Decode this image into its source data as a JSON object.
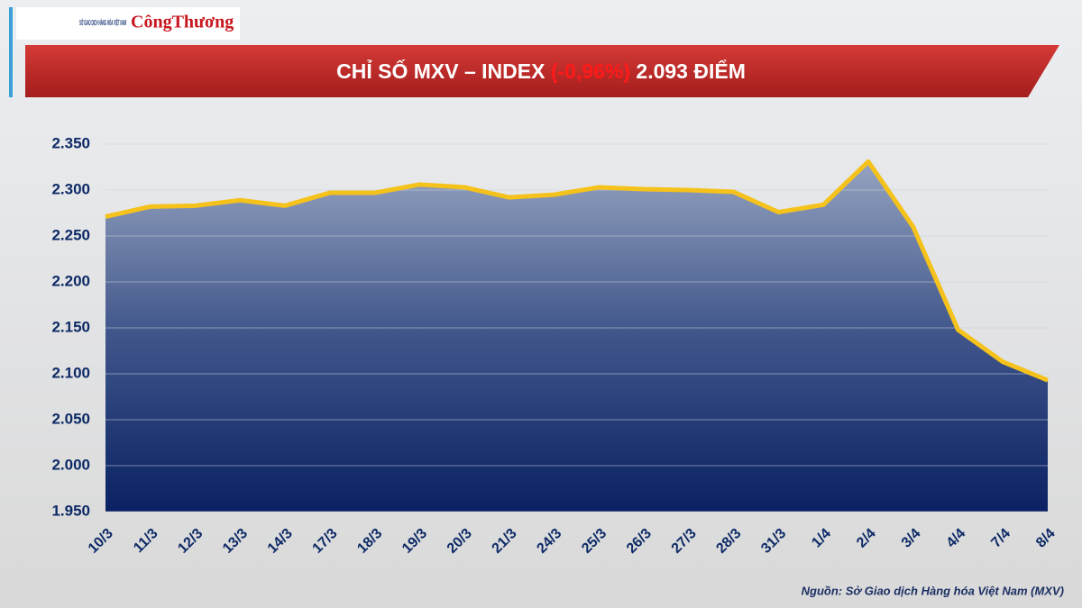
{
  "chart_data": {
    "type": "area",
    "logo_text": "SỞ GIAO DỊCH HÀNG HÓA VIỆT NAM",
    "brand": "CôngThương",
    "title": "CHỈ SỐ MXV – INDEX",
    "title_change": "(-0,96%)",
    "title_value": "2.093 ĐIỂM",
    "source": "Nguồn: Sở Giao dịch Hàng hóa Việt Nam (MXV)",
    "categories": [
      "10/3",
      "11/3",
      "12/3",
      "13/3",
      "14/3",
      "17/3",
      "18/3",
      "19/3",
      "20/3",
      "21/3",
      "24/3",
      "25/3",
      "26/3",
      "27/3",
      "28/3",
      "31/3",
      "1/4",
      "2/4",
      "3/4",
      "4/4",
      "7/4",
      "8/4"
    ],
    "series": [
      {
        "name": "MXV-Index",
        "color": "#f5c21b",
        "values": [
          2271,
          2282,
          2283,
          2289,
          2283,
          2297,
          2297,
          2306,
          2303,
          2292,
          2295,
          2303,
          2301,
          2300,
          2298,
          2276,
          2284,
          2331,
          2260,
          2148,
          2113,
          2093
        ]
      }
    ],
    "ylim": [
      1950,
      2350
    ],
    "yticks": [
      {
        "value": 1950,
        "label": "1.950"
      },
      {
        "value": 2000,
        "label": "2.000"
      },
      {
        "value": 2050,
        "label": "2.050"
      },
      {
        "value": 2100,
        "label": "2.100"
      },
      {
        "value": 2150,
        "label": "2.150"
      },
      {
        "value": 2200,
        "label": "2.200"
      },
      {
        "value": 2250,
        "label": "2.250"
      },
      {
        "value": 2300,
        "label": "2.300"
      },
      {
        "value": 2350,
        "label": "2.350"
      }
    ],
    "grid": true
  }
}
